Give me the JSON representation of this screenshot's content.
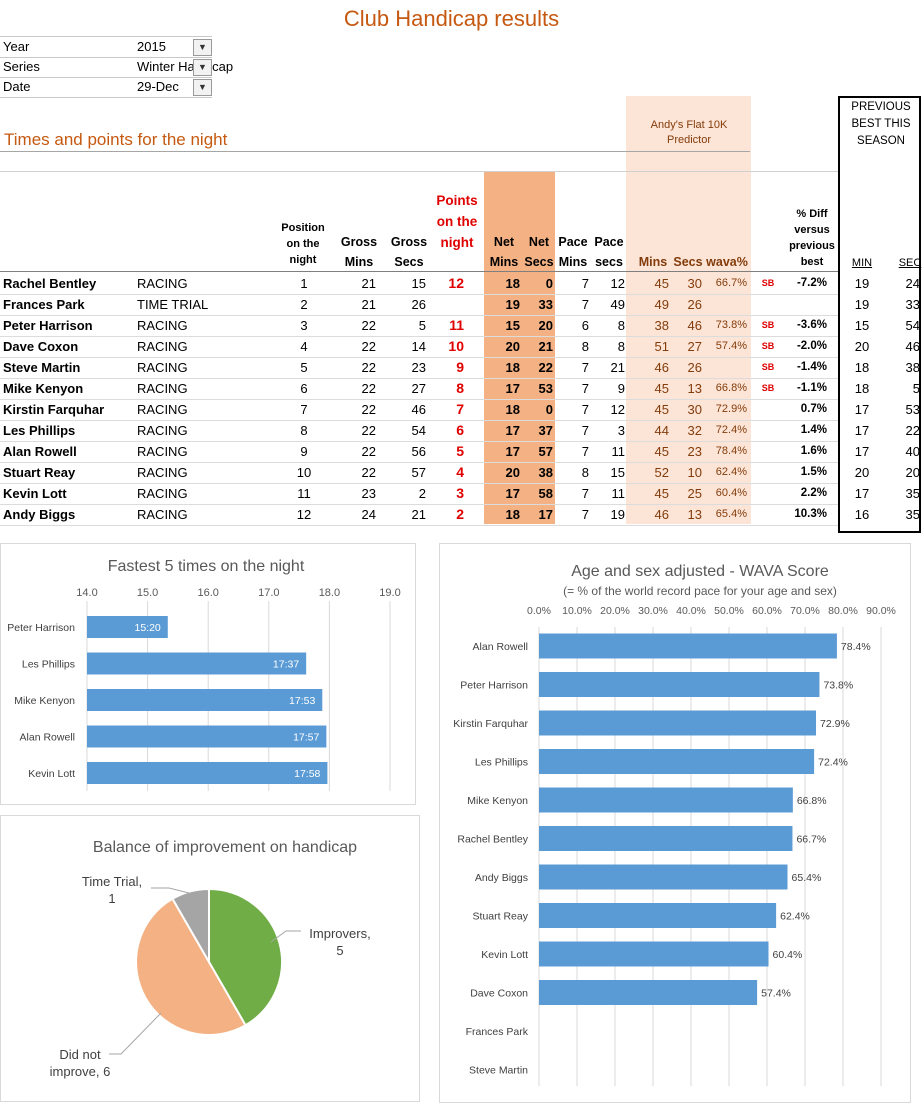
{
  "title": "Club Handicap results",
  "filters": [
    {
      "label": "Year",
      "value": "2015"
    },
    {
      "label": "Series",
      "value": "Winter Handicap"
    },
    {
      "label": "Date",
      "value": "29-Dec"
    }
  ],
  "section_title": "Times and points for the night",
  "predictor_title": "Andy's Flat 10K Predictor",
  "prev_title": "PREVIOUS BEST THIS SEASON",
  "headers": {
    "position": "Position on the night",
    "gross_mins": "Gross Mins",
    "gross_secs": "Gross Secs",
    "points": "Points on the night",
    "net_mins": "Net Mins",
    "net_secs": "Net Secs",
    "pace_mins": "Pace Mins",
    "pace_secs": "Pace secs",
    "pred_mins": "Mins",
    "pred_secs": "Secs",
    "wava": "wava%",
    "diff": "% Diff versus previous best",
    "prev_min": "MIN",
    "prev_sec": "SEC"
  },
  "rows": [
    {
      "name": "Rachel Bentley",
      "type": "RACING",
      "pos": "1",
      "gm": "21",
      "gs": "15",
      "pts": "12",
      "nm": "18",
      "ns": "0",
      "pm": "7",
      "ps": "12",
      "prm": "45",
      "prs": "30",
      "wava": "66.7%",
      "sb": "SB",
      "diff": "-7.2%",
      "bm": "19",
      "bs": "24"
    },
    {
      "name": "Frances Park",
      "type": "TIME TRIAL",
      "pos": "2",
      "gm": "21",
      "gs": "26",
      "pts": "",
      "nm": "19",
      "ns": "33",
      "pm": "7",
      "ps": "49",
      "prm": "49",
      "prs": "26",
      "wava": "",
      "sb": "",
      "diff": "",
      "bm": "19",
      "bs": "33"
    },
    {
      "name": "Peter Harrison",
      "type": "RACING",
      "pos": "3",
      "gm": "22",
      "gs": "5",
      "pts": "11",
      "nm": "15",
      "ns": "20",
      "pm": "6",
      "ps": "8",
      "prm": "38",
      "prs": "46",
      "wava": "73.8%",
      "sb": "SB",
      "diff": "-3.6%",
      "bm": "15",
      "bs": "54"
    },
    {
      "name": "Dave Coxon",
      "type": "RACING",
      "pos": "4",
      "gm": "22",
      "gs": "14",
      "pts": "10",
      "nm": "20",
      "ns": "21",
      "pm": "8",
      "ps": "8",
      "prm": "51",
      "prs": "27",
      "wava": "57.4%",
      "sb": "SB",
      "diff": "-2.0%",
      "bm": "20",
      "bs": "46"
    },
    {
      "name": "Steve Martin",
      "type": "RACING",
      "pos": "5",
      "gm": "22",
      "gs": "23",
      "pts": "9",
      "nm": "18",
      "ns": "22",
      "pm": "7",
      "ps": "21",
      "prm": "46",
      "prs": "26",
      "wava": "",
      "sb": "SB",
      "diff": "-1.4%",
      "bm": "18",
      "bs": "38"
    },
    {
      "name": "Mike Kenyon",
      "type": "RACING",
      "pos": "6",
      "gm": "22",
      "gs": "27",
      "pts": "8",
      "nm": "17",
      "ns": "53",
      "pm": "7",
      "ps": "9",
      "prm": "45",
      "prs": "13",
      "wava": "66.8%",
      "sb": "SB",
      "diff": "-1.1%",
      "bm": "18",
      "bs": "5"
    },
    {
      "name": "Kirstin Farquhar",
      "type": "RACING",
      "pos": "7",
      "gm": "22",
      "gs": "46",
      "pts": "7",
      "nm": "18",
      "ns": "0",
      "pm": "7",
      "ps": "12",
      "prm": "45",
      "prs": "30",
      "wava": "72.9%",
      "sb": "",
      "diff": "0.7%",
      "bm": "17",
      "bs": "53"
    },
    {
      "name": "Les Phillips",
      "type": "RACING",
      "pos": "8",
      "gm": "22",
      "gs": "54",
      "pts": "6",
      "nm": "17",
      "ns": "37",
      "pm": "7",
      "ps": "3",
      "prm": "44",
      "prs": "32",
      "wava": "72.4%",
      "sb": "",
      "diff": "1.4%",
      "bm": "17",
      "bs": "22"
    },
    {
      "name": "Alan Rowell",
      "type": "RACING",
      "pos": "9",
      "gm": "22",
      "gs": "56",
      "pts": "5",
      "nm": "17",
      "ns": "57",
      "pm": "7",
      "ps": "11",
      "prm": "45",
      "prs": "23",
      "wava": "78.4%",
      "sb": "",
      "diff": "1.6%",
      "bm": "17",
      "bs": "40"
    },
    {
      "name": "Stuart Reay",
      "type": "RACING",
      "pos": "10",
      "gm": "22",
      "gs": "57",
      "pts": "4",
      "nm": "20",
      "ns": "38",
      "pm": "8",
      "ps": "15",
      "prm": "52",
      "prs": "10",
      "wava": "62.4%",
      "sb": "",
      "diff": "1.5%",
      "bm": "20",
      "bs": "20"
    },
    {
      "name": "Kevin Lott",
      "type": "RACING",
      "pos": "11",
      "gm": "23",
      "gs": "2",
      "pts": "3",
      "nm": "17",
      "ns": "58",
      "pm": "7",
      "ps": "11",
      "prm": "45",
      "prs": "25",
      "wava": "60.4%",
      "sb": "",
      "diff": "2.2%",
      "bm": "17",
      "bs": "35"
    },
    {
      "name": "Andy Biggs",
      "type": "RACING",
      "pos": "12",
      "gm": "24",
      "gs": "21",
      "pts": "2",
      "nm": "18",
      "ns": "17",
      "pm": "7",
      "ps": "19",
      "prm": "46",
      "prs": "13",
      "wava": "65.4%",
      "sb": "",
      "diff": "10.3%",
      "bm": "16",
      "bs": "35"
    }
  ],
  "colors": {
    "orange_text": "#c65911",
    "net_fill": "#f4b183",
    "pred_fill": "#fce4d6",
    "pred_text": "#833c0b",
    "points_red": "#e00000",
    "bar_blue": "#5b9bd5",
    "pie_green": "#70ad47",
    "pie_orange": "#f4b183",
    "pie_gray": "#a5a5a5"
  },
  "chart_data": [
    {
      "type": "bar",
      "title": "Fastest 5 times on the night",
      "categories": [
        "Peter Harrison",
        "Les Phillips",
        "Mike Kenyon",
        "Alan Rowell",
        "Kevin Lott"
      ],
      "values": [
        15.333,
        17.617,
        17.883,
        17.95,
        17.967
      ],
      "data_labels": [
        "15:20",
        "17:37",
        "17:53",
        "17:57",
        "17:58"
      ],
      "xlim": [
        14.0,
        19.0
      ],
      "ticks": [
        "14.0",
        "15.0",
        "16.0",
        "17.0",
        "18.0",
        "19.0"
      ],
      "tick_values": [
        14,
        15,
        16,
        17,
        18,
        19
      ]
    },
    {
      "type": "pie",
      "title": "Balance of improvement on handicap",
      "slices": [
        {
          "name": "Improvers",
          "value": 5,
          "label": "Improvers, 5"
        },
        {
          "name": "Did not improve",
          "value": 6,
          "label": "Did not improve, 6"
        },
        {
          "name": "Time Trial",
          "value": 1,
          "label": "Time Trial, 1"
        }
      ]
    },
    {
      "type": "bar",
      "title": "Age and sex adjusted - WAVA Score",
      "subtitle": "(= % of the world record pace for your age and sex)",
      "categories": [
        "Alan Rowell",
        "Peter Harrison",
        "Kirstin Farquhar",
        "Les Phillips",
        "Mike Kenyon",
        "Rachel Bentley",
        "Andy Biggs",
        "Stuart Reay",
        "Kevin Lott",
        "Dave Coxon",
        "Frances Park",
        "Steve Martin"
      ],
      "values": [
        78.4,
        73.8,
        72.9,
        72.4,
        66.8,
        66.7,
        65.4,
        62.4,
        60.4,
        57.4,
        null,
        null
      ],
      "data_labels": [
        "78.4%",
        "73.8%",
        "72.9%",
        "72.4%",
        "66.8%",
        "66.7%",
        "65.4%",
        "62.4%",
        "60.4%",
        "57.4%",
        "",
        ""
      ],
      "xlim": [
        0,
        90
      ],
      "ticks": [
        "0.0%",
        "10.0%",
        "20.0%",
        "30.0%",
        "40.0%",
        "50.0%",
        "60.0%",
        "70.0%",
        "80.0%",
        "90.0%"
      ],
      "tick_values": [
        0,
        10,
        20,
        30,
        40,
        50,
        60,
        70,
        80,
        90
      ]
    }
  ]
}
